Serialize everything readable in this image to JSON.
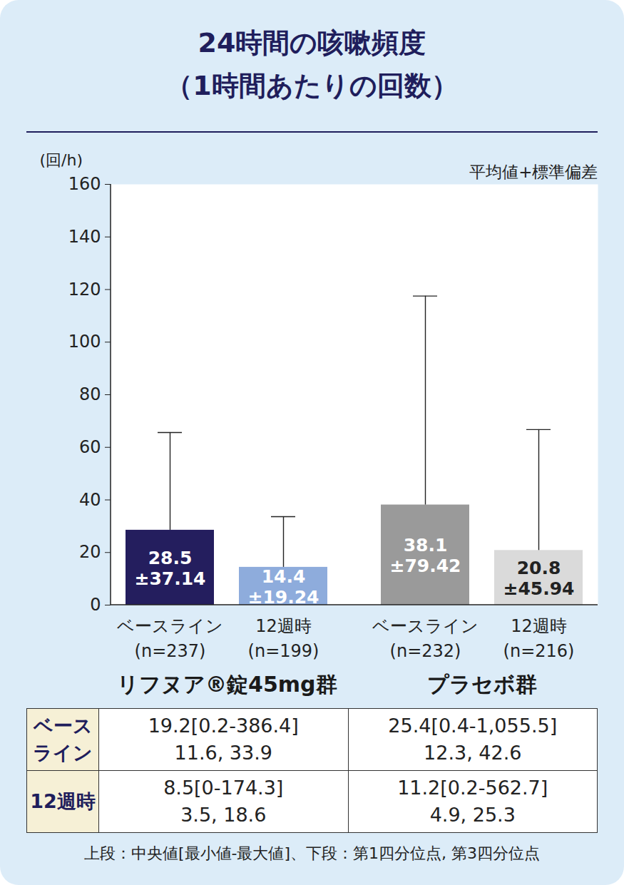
{
  "chart_data": {
    "type": "bar",
    "title": "24時間の咳嗽頻度",
    "subtitle": "（1時間あたりの回数）",
    "y_label": "(回/h)",
    "annotation": "平均値+標準偏差",
    "ylim": [
      0,
      160
    ],
    "yticks": [
      0,
      20,
      40,
      60,
      80,
      100,
      120,
      140,
      160
    ],
    "data_labels": true,
    "groups": [
      {
        "name": "リフヌア®錠45mg群",
        "categories": [
          "ベースライン\n(n=237)",
          "12週時\n(n=199)"
        ],
        "values": [
          28.5,
          14.4
        ],
        "errors": [
          37.14,
          19.24
        ],
        "value_labels": [
          "28.5\n±37.14",
          "14.4\n±19.24"
        ],
        "colors": [
          "#241e5e",
          "#8eacdc"
        ]
      },
      {
        "name": "プラセボ群",
        "categories": [
          "ベースライン\n(n=232)",
          "12週時\n(n=216)"
        ],
        "values": [
          38.1,
          20.8
        ],
        "errors": [
          79.42,
          45.94
        ],
        "value_labels": [
          "38.1\n±79.42",
          "20.8\n±45.94"
        ],
        "colors": [
          "#9a9a9a",
          "#dadada"
        ]
      }
    ]
  },
  "table": {
    "rows": [
      [
        "ベースライン",
        "19.2[0.2-386.4]\n11.6, 33.9",
        "25.4[0.4-1,055.5]\n12.3, 42.6"
      ],
      [
        "12週時",
        "8.5[0-174.3]\n3.5, 18.6",
        "11.2[0.2-562.7]\n4.9, 25.3"
      ]
    ],
    "note": "上段：中央値[最小値-最大値]、下段：第1四分位点, 第3四分位点"
  }
}
